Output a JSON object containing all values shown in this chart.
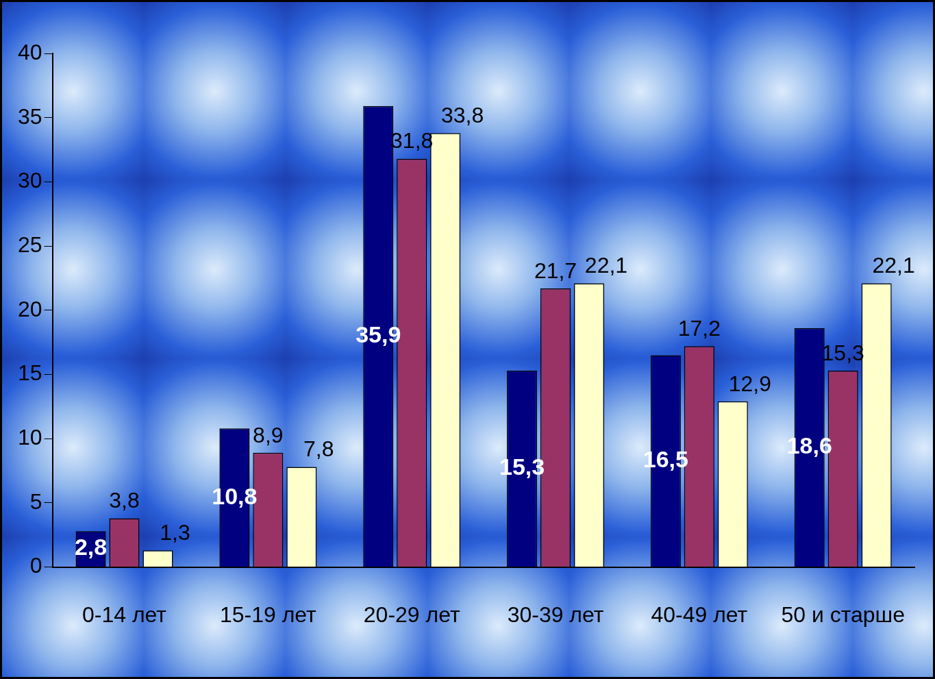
{
  "chart_data": {
    "type": "bar",
    "categories": [
      "0-14 лет",
      "15-19 лет",
      "20-29 лет",
      "30-39 лет",
      "40-49 лет",
      "50 и старше"
    ],
    "series": [
      {
        "color": "#000080",
        "values": [
          2.8,
          10.8,
          35.9,
          15.3,
          16.5,
          18.6
        ],
        "value_labels": [
          "2,8",
          "10,8",
          "35,9",
          "15,3",
          "16,5",
          "18,6"
        ]
      },
      {
        "color": "#993366",
        "values": [
          3.8,
          8.9,
          31.8,
          21.7,
          17.2,
          15.3
        ],
        "value_labels": [
          "3,8",
          "8,9",
          "31,8",
          "21,7",
          "17,2",
          "15,3"
        ]
      },
      {
        "color": "#ffffcc",
        "values": [
          1.3,
          7.8,
          33.8,
          22.1,
          12.9,
          22.1
        ],
        "value_labels": [
          "1,3",
          "7,8",
          "33,8",
          "22,1",
          "12,9",
          "22,1"
        ]
      }
    ],
    "ylim": [
      0,
      40
    ],
    "yticks": [
      0,
      5,
      10,
      15,
      20,
      25,
      30,
      35,
      40
    ],
    "grid": false,
    "legend": false
  }
}
